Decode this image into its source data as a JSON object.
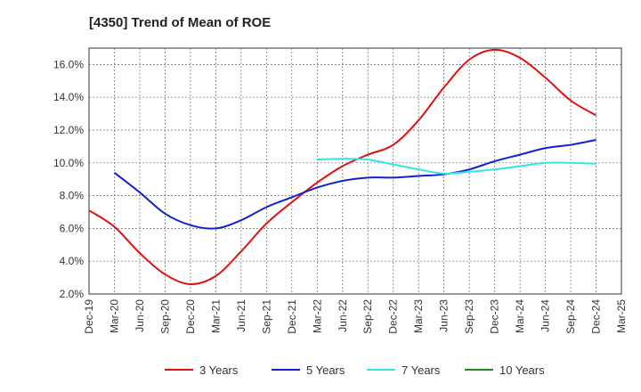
{
  "chart_data": {
    "type": "line",
    "title": "[4350]  Trend of Mean of ROE",
    "xlabel": "",
    "ylabel": "",
    "ylim": [
      2,
      17
    ],
    "grid": true,
    "legend_position": "bottom",
    "categories": [
      "Dec-19",
      "Mar-20",
      "Jun-20",
      "Sep-20",
      "Dec-20",
      "Mar-21",
      "Jun-21",
      "Sep-21",
      "Dec-21",
      "Mar-22",
      "Jun-22",
      "Sep-22",
      "Dec-22",
      "Mar-23",
      "Jun-23",
      "Sep-23",
      "Dec-23",
      "Mar-24",
      "Jun-24",
      "Sep-24",
      "Dec-24",
      "Mar-25"
    ],
    "y_ticks": [
      "2.0%",
      "4.0%",
      "6.0%",
      "8.0%",
      "10.0%",
      "12.0%",
      "14.0%",
      "16.0%"
    ],
    "y_tick_values": [
      2,
      4,
      6,
      8,
      10,
      12,
      14,
      16
    ],
    "series": [
      {
        "name": "3 Years",
        "color": "#dd1111",
        "values": [
          7.1,
          6.1,
          4.5,
          3.2,
          2.6,
          3.1,
          4.6,
          6.3,
          7.6,
          8.8,
          9.8,
          10.5,
          11.1,
          12.6,
          14.6,
          16.3,
          16.9,
          16.4,
          15.2,
          13.8,
          12.9,
          null
        ]
      },
      {
        "name": "5 Years",
        "color": "#1122cc",
        "values": [
          null,
          9.4,
          8.2,
          6.9,
          6.2,
          6.0,
          6.5,
          7.3,
          7.9,
          8.5,
          8.9,
          9.1,
          9.1,
          9.2,
          9.3,
          9.6,
          10.1,
          10.5,
          10.9,
          11.1,
          11.4,
          null
        ]
      },
      {
        "name": "7 Years",
        "color": "#33e5e5",
        "values": [
          null,
          null,
          null,
          null,
          null,
          null,
          null,
          null,
          null,
          10.2,
          10.25,
          10.2,
          9.9,
          9.6,
          9.35,
          9.45,
          9.6,
          9.8,
          10.0,
          10.0,
          9.95,
          null
        ]
      },
      {
        "name": "10 Years",
        "color": "#228822",
        "values": [
          null,
          null,
          null,
          null,
          null,
          null,
          null,
          null,
          null,
          null,
          null,
          null,
          null,
          null,
          null,
          null,
          null,
          null,
          null,
          null,
          null,
          null
        ]
      }
    ]
  }
}
